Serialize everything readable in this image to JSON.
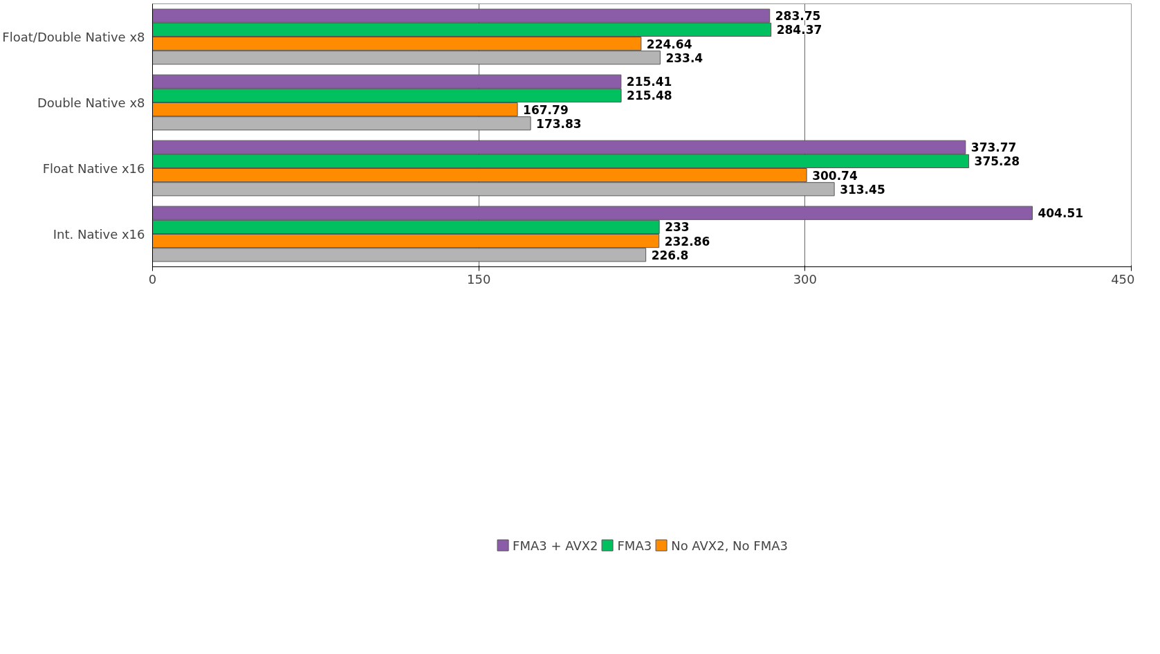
{
  "chart_data": {
    "type": "bar",
    "orientation": "horizontal",
    "categories": [
      "Float/Double Native x8",
      "Double Native x8",
      "Float Native x16",
      "Int. Native x16"
    ],
    "series": [
      {
        "name": "FMA3 + AVX2",
        "color": "#8b5ca8",
        "values": [
          283.75,
          215.41,
          373.77,
          404.51
        ]
      },
      {
        "name": "FMA3",
        "color": "#00c060",
        "values": [
          284.37,
          215.48,
          375.28,
          233
        ]
      },
      {
        "name": "No AVX2, No FMA3",
        "color": "#ff8c00",
        "values": [
          224.64,
          167.79,
          300.74,
          232.86
        ]
      },
      {
        "color": "#b4b4b4",
        "values": [
          233.4,
          173.83,
          313.45,
          226.8
        ]
      }
    ],
    "xlim": [
      0,
      450
    ],
    "xticks": [
      0,
      150,
      300,
      450
    ],
    "grid": "x",
    "legend": "bottom",
    "data_labels": true
  }
}
